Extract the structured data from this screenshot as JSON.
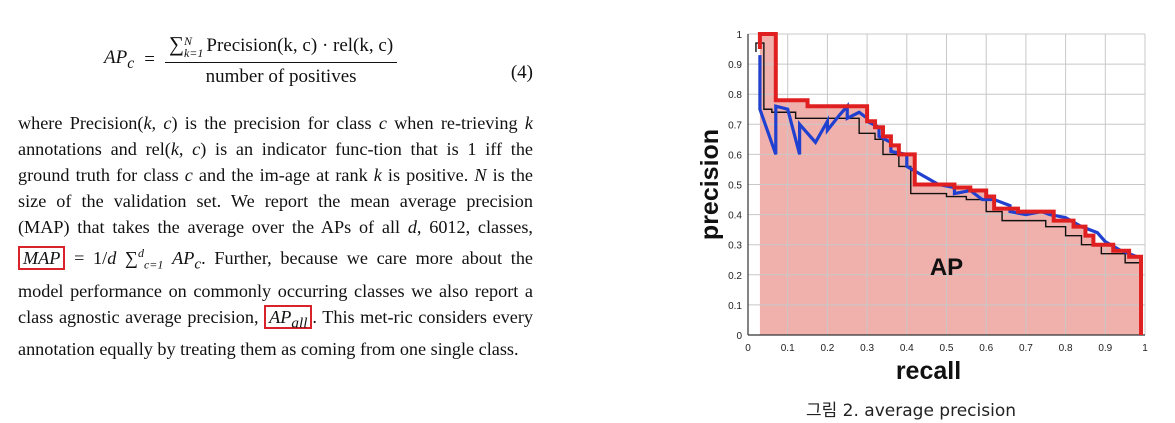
{
  "equation": {
    "lhs": "AP",
    "lhs_sub": "c",
    "equals": "=",
    "sum_upper": "N",
    "sum_lower": "k=1",
    "numerator_body": "Precision(k, c) · rel(k, c)",
    "denominator": "number of positives",
    "number": "(4)"
  },
  "paragraph": {
    "t1": "where Precision(",
    "kc1": "k, c",
    "t2": ") is the precision for class ",
    "c1": "c",
    "t3": " when re-trieving ",
    "k1": "k",
    "t4": " annotations and rel(",
    "kc2": "k, c",
    "t5": ") is an indicator func-tion that is 1 iff the ground truth for class ",
    "c2": "c",
    "t6": " and the im-age at rank ",
    "k2": "k",
    "t7": " is positive.  ",
    "n1": "N",
    "t8": " is the size of the validation set. We report the mean average precision (MAP) that takes the average over the APs of all ",
    "d1": "d",
    "t9": ", 6012, classes, ",
    "map": "MAP",
    "t10": " = 1/",
    "d2": "d",
    "t11": " ∑",
    "sum_sup": "d",
    "sum_sub": "c=1",
    "t12": " ",
    "apc": "AP",
    "apc_sub": "c",
    "t13": ".  Further, because we care more about the model performance on commonly occurring classes we also report a class agnostic average precision, ",
    "apall": "AP",
    "apall_sub": "all",
    "t14": ". This met-ric considers every annotation equally by treating them as coming from one single class."
  },
  "chart_data": {
    "type": "line",
    "xlabel": "recall",
    "ylabel": "precision",
    "area_label": "AP",
    "xlim": [
      0,
      1
    ],
    "ylim": [
      0,
      1
    ],
    "x_ticks": [
      "0",
      "0.1",
      "0.2",
      "0.3",
      "0.4",
      "0.5",
      "0.6",
      "0.7",
      "0.8",
      "0.9",
      "1"
    ],
    "y_ticks": [
      "0",
      "0.1",
      "0.2",
      "0.3",
      "0.4",
      "0.5",
      "0.6",
      "0.7",
      "0.8",
      "0.9",
      "1"
    ],
    "grid": true,
    "series": [
      {
        "color": "#2040d0",
        "x": [
          0.03,
          0.03,
          0.07,
          0.07,
          0.1,
          0.13,
          0.13,
          0.17,
          0.2,
          0.2,
          0.23,
          0.25,
          0.25,
          0.28,
          0.3,
          0.3,
          0.33,
          0.33,
          0.36,
          0.36,
          0.4,
          0.4,
          0.44,
          0.48,
          0.52,
          0.52,
          0.56,
          0.59,
          0.62,
          0.66,
          0.66,
          0.7,
          0.74,
          0.76,
          0.8,
          0.84,
          0.88,
          0.9,
          0.94,
          0.98
        ],
        "y": [
          0.93,
          0.75,
          0.6,
          0.76,
          0.75,
          0.6,
          0.7,
          0.64,
          0.71,
          0.68,
          0.73,
          0.76,
          0.72,
          0.74,
          0.72,
          0.71,
          0.69,
          0.66,
          0.64,
          0.61,
          0.6,
          0.56,
          0.53,
          0.5,
          0.49,
          0.47,
          0.48,
          0.45,
          0.45,
          0.43,
          0.41,
          0.4,
          0.41,
          0.4,
          0.39,
          0.36,
          0.34,
          0.31,
          0.28,
          0.26
        ]
      },
      {
        "color": "#e02020",
        "x": [
          0.03,
          0.03,
          0.07,
          0.07,
          0.15,
          0.15,
          0.3,
          0.3,
          0.32,
          0.32,
          0.34,
          0.34,
          0.36,
          0.36,
          0.38,
          0.38,
          0.42,
          0.42,
          0.52,
          0.52,
          0.56,
          0.56,
          0.6,
          0.6,
          0.62,
          0.62,
          0.68,
          0.68,
          0.77,
          0.77,
          0.82,
          0.82,
          0.85,
          0.85,
          0.87,
          0.87,
          0.92,
          0.92,
          0.96,
          0.96,
          0.99,
          0.99
        ],
        "y": [
          0.95,
          1.0,
          1.0,
          0.78,
          0.78,
          0.76,
          0.76,
          0.71,
          0.71,
          0.69,
          0.69,
          0.66,
          0.66,
          0.63,
          0.63,
          0.6,
          0.6,
          0.5,
          0.5,
          0.49,
          0.49,
          0.48,
          0.48,
          0.46,
          0.46,
          0.42,
          0.42,
          0.41,
          0.41,
          0.38,
          0.38,
          0.36,
          0.36,
          0.33,
          0.33,
          0.3,
          0.3,
          0.28,
          0.28,
          0.26,
          0.26,
          0.0
        ]
      },
      {
        "color": "#111111",
        "x": [
          0.02,
          0.02,
          0.04,
          0.04,
          0.06,
          0.06,
          0.12,
          0.12,
          0.28,
          0.28,
          0.32,
          0.32,
          0.34,
          0.34,
          0.38,
          0.38,
          0.41,
          0.41,
          0.5,
          0.5,
          0.55,
          0.55,
          0.6,
          0.6,
          0.64,
          0.64,
          0.75,
          0.75,
          0.8,
          0.8,
          0.84,
          0.84,
          0.89,
          0.89,
          0.95,
          0.95,
          0.99
        ],
        "y": [
          0.94,
          0.97,
          0.97,
          0.75,
          0.75,
          0.74,
          0.74,
          0.72,
          0.72,
          0.67,
          0.67,
          0.65,
          0.65,
          0.6,
          0.6,
          0.56,
          0.56,
          0.47,
          0.47,
          0.46,
          0.46,
          0.45,
          0.45,
          0.41,
          0.41,
          0.38,
          0.38,
          0.36,
          0.36,
          0.33,
          0.33,
          0.3,
          0.3,
          0.27,
          0.27,
          0.24,
          0.24
        ]
      }
    ],
    "area_fill_color": "#f0b0ac"
  },
  "caption": "그림 2. average precision"
}
